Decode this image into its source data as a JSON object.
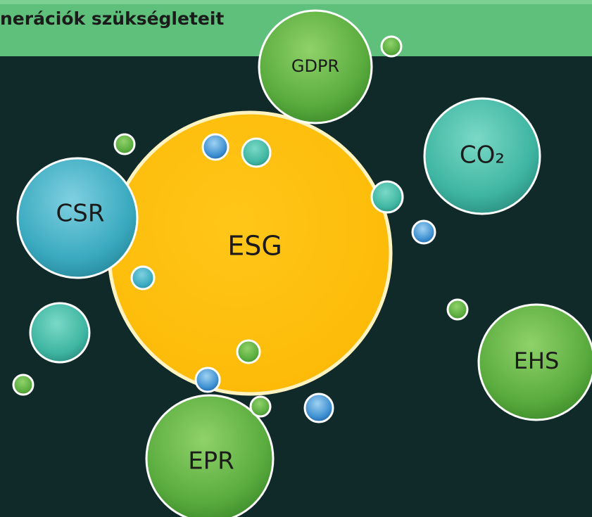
{
  "header": {
    "text": "nerációk szükségleteit"
  },
  "nodes": [
    {
      "label": "ESG"
    },
    {
      "label": "GDPR"
    },
    {
      "label": "CO₂"
    },
    {
      "label": "CSR"
    },
    {
      "label": "EHS"
    },
    {
      "label": "EPR"
    }
  ]
}
